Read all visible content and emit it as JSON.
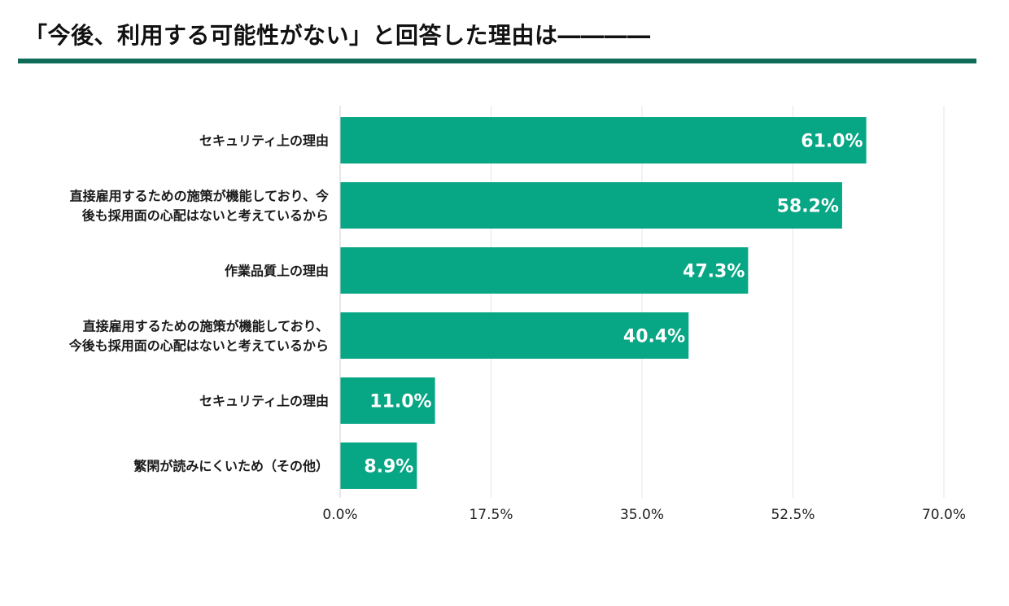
{
  "header": {
    "title": "「今後、利用する可能性がない」と回答した理由は――――"
  },
  "colors": {
    "accent": "#0e6b58",
    "bar": "#07a684",
    "grid": "#e6e6e6",
    "value_text": "#ffffff"
  },
  "chart_data": {
    "type": "bar",
    "orientation": "horizontal",
    "title": "",
    "xlabel": "",
    "ylabel": "",
    "xlim": [
      0,
      70
    ],
    "x_ticks": [
      "0.0%",
      "17.5%",
      "35.0%",
      "52.5%",
      "70.0%"
    ],
    "x_tick_values": [
      0,
      17.5,
      35,
      52.5,
      70
    ],
    "grid": "vertical",
    "categories": [
      [
        "セキュリティ上の理由"
      ],
      [
        "直接雇用するための施策が機能しており、今",
        "後も採用面の心配はないと考えているから"
      ],
      [
        "作業品質上の理由"
      ],
      [
        "直接雇用するための施策が機能しており、",
        "今後も採用面の心配はないと考えているから"
      ],
      [
        "セキュリティ上の理由"
      ],
      [
        "繁閑が読みにくいため（その他）"
      ]
    ],
    "values": [
      61.0,
      58.2,
      47.3,
      40.4,
      11.0,
      8.9
    ],
    "value_labels": [
      "61.0%",
      "58.2%",
      "47.3%",
      "40.4%",
      "11.0%",
      "8.9%"
    ]
  }
}
